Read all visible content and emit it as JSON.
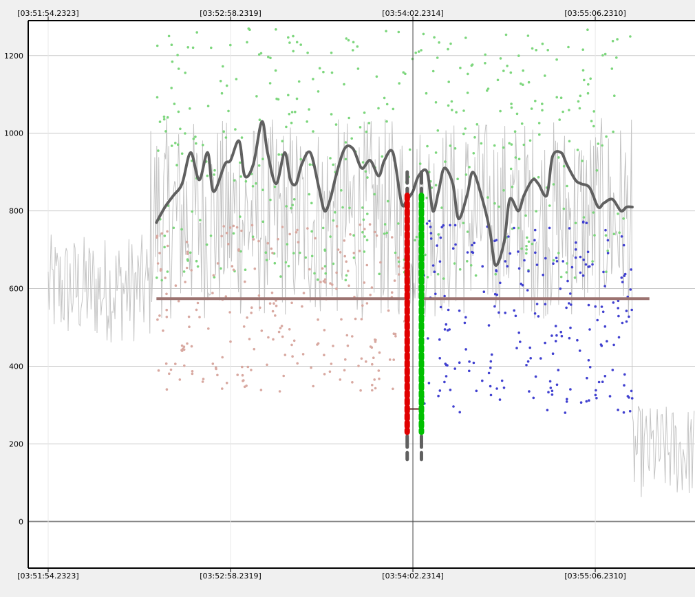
{
  "chart_data": {
    "type": "line",
    "x_tick_labels_top": [
      "[03:51:54.2323]",
      "[03:52:58.2319]",
      "[03:54:02.2314]",
      "[03:55:06.2310]"
    ],
    "x_tick_labels_bottom": [
      "[03:51:54.2323]",
      "[03:52:58.2319]",
      "[03:54:02.2314]",
      "[03:55:06.2310]"
    ],
    "y_tick_labels": [
      "1200",
      "1000",
      "800",
      "600",
      "400",
      "200",
      "0"
    ],
    "y_ticks": [
      1200,
      1000,
      800,
      600,
      400,
      200,
      0
    ],
    "ylim": [
      -120,
      1290
    ],
    "x_ticks_sec": [
      0,
      64,
      128,
      192
    ],
    "xlim_sec": [
      -7,
      227
    ],
    "grid": true,
    "cursor_x_sec": 128,
    "raw_trace": {
      "description": "light gray raw signal",
      "sections": [
        {
          "x_start_sec": 0,
          "x_end_sec": 36,
          "center": 600,
          "spread": 140
        },
        {
          "x_start_sec": 36,
          "x_end_sec": 205,
          "center": 780,
          "spread": 260
        },
        {
          "x_start_sec": 205,
          "x_end_sec": 227,
          "center": 180,
          "spread": 120
        }
      ]
    },
    "smoothed_series": {
      "color": "#606060",
      "x_sec": [
        38,
        41,
        44,
        47,
        50,
        53,
        56,
        58,
        62,
        64,
        67,
        69,
        72,
        75,
        77,
        80,
        83,
        85,
        87,
        89,
        92,
        95,
        97,
        99,
        101,
        104,
        107,
        110,
        113,
        116,
        118,
        121,
        124,
        126,
        128,
        130,
        133,
        135,
        137,
        139,
        142,
        144,
        147,
        149,
        152,
        155,
        157,
        160,
        162,
        165,
        167,
        170,
        172,
        175,
        177,
        180,
        182,
        185,
        187,
        190,
        193,
        195,
        198,
        201,
        203,
        205
      ],
      "values": [
        770,
        810,
        840,
        870,
        950,
        880,
        950,
        850,
        920,
        930,
        980,
        890,
        920,
        1030,
        950,
        870,
        950,
        880,
        870,
        920,
        950,
        860,
        800,
        830,
        890,
        960,
        960,
        910,
        930,
        890,
        930,
        950,
        820,
        830,
        850,
        890,
        900,
        800,
        850,
        910,
        870,
        780,
        840,
        900,
        840,
        750,
        660,
        720,
        830,
        800,
        840,
        880,
        870,
        840,
        940,
        950,
        920,
        880,
        870,
        860,
        810,
        820,
        830,
        800,
        810,
        810
      ],
      "line_width": 4
    },
    "reference_line": {
      "y": 574,
      "x_start_sec": 38,
      "x_end_sec": 211,
      "color": "#9c7370"
    },
    "markers": [
      {
        "name": "red-dashed-marker",
        "x_sec": 126,
        "y_start": 840,
        "y_end": 230,
        "color": "#e00000"
      },
      {
        "name": "green-dashed-marker",
        "x_sec": 131,
        "y_start": 840,
        "y_end": 230,
        "color": "#00c000"
      },
      {
        "name": "gray-dashed-marker-left",
        "x_sec": 126,
        "y_start": 900,
        "y_end": 160,
        "color": "#606060"
      },
      {
        "name": "gray-dashed-marker-right",
        "x_sec": 131,
        "y_start": 900,
        "y_end": 160,
        "color": "#606060"
      }
    ],
    "point_groups": [
      {
        "name": "green-points",
        "color": "#7cd67c",
        "description": "high-value samples",
        "x_range_sec": [
          38,
          205
        ],
        "y_range": [
          620,
          1270
        ]
      },
      {
        "name": "pink-points",
        "color": "#d8a8a0",
        "description": "mid-value samples left of cursor",
        "x_range_sec": [
          38,
          126
        ],
        "y_range": [
          330,
          770
        ]
      },
      {
        "name": "blue-points",
        "color": "#4040d0",
        "description": "mid-value samples right of cursor",
        "x_range_sec": [
          131,
          205
        ],
        "y_range": [
          280,
          780
        ]
      }
    ]
  }
}
